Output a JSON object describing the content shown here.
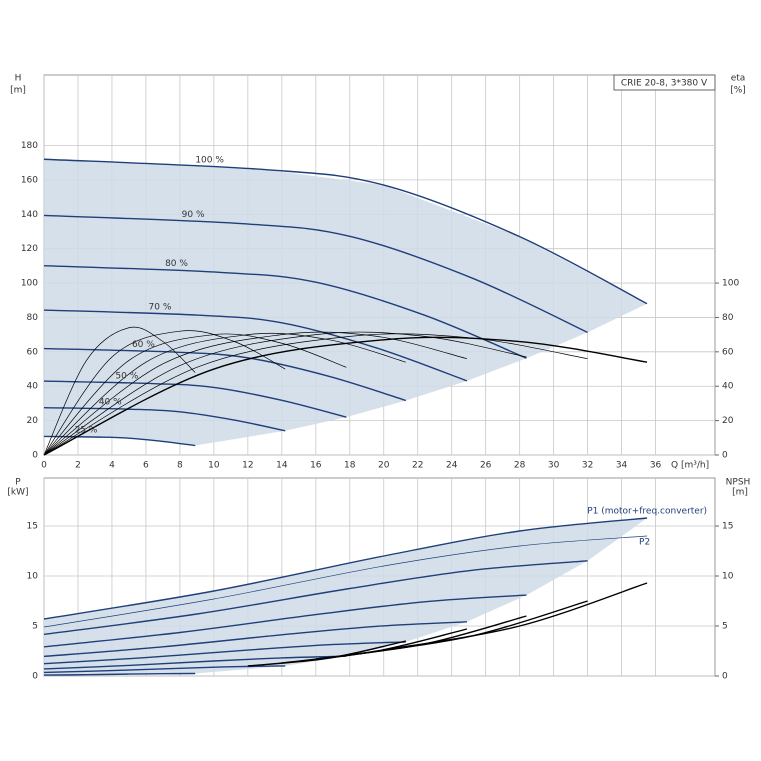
{
  "chart_data": [
    {
      "type": "line",
      "title": "CRIE 20-8, 3*380 V",
      "x_label": "Q [m³/h]",
      "y_label": "H",
      "y_unit": "[m]",
      "y2_label": "eta",
      "y2_unit": "[%]",
      "xlim": [
        0,
        39.5
      ],
      "xticks": [
        0,
        2,
        4,
        6,
        8,
        10,
        12,
        14,
        16,
        18,
        20,
        22,
        24,
        26,
        28,
        30,
        32,
        34,
        36
      ],
      "ylim": [
        0,
        221
      ],
      "yticks": [
        0,
        20,
        40,
        60,
        80,
        100,
        120,
        140,
        160,
        180
      ],
      "y2lim": [
        0,
        221
      ],
      "y2ticks": [
        0,
        20,
        40,
        60,
        80,
        100
      ],
      "grid": true,
      "shade": "#cfdbe7",
      "series": [
        {
          "name": "100 %",
          "color": "#1f3f7a",
          "style": "bold",
          "x": [
            0,
            13,
            20,
            28,
            35.5
          ],
          "values": [
            172,
            166,
            157,
            127,
            88
          ]
        },
        {
          "name": "90 %",
          "color": "#1f3f7a",
          "style": "bold",
          "x": [
            0,
            11.7,
            18,
            25.2,
            32
          ],
          "values": [
            139.3,
            134.5,
            127.2,
            102.9,
            71.3
          ]
        },
        {
          "name": "80 %",
          "color": "#1f3f7a",
          "style": "bold",
          "x": [
            0,
            10.4,
            16,
            22.4,
            28.4
          ],
          "values": [
            110.1,
            106.2,
            100.5,
            81.3,
            56.3
          ]
        },
        {
          "name": "70 %",
          "color": "#1f3f7a",
          "style": "bold",
          "x": [
            0,
            9.1,
            14,
            19.6,
            24.9
          ],
          "values": [
            84.3,
            81.3,
            76.9,
            62.2,
            43.1
          ]
        },
        {
          "name": "60 %",
          "color": "#1f3f7a",
          "style": "bold",
          "x": [
            0,
            7.8,
            12,
            16.8,
            21.3
          ],
          "values": [
            61.9,
            59.8,
            56.5,
            45.7,
            31.7
          ]
        },
        {
          "name": "50 %",
          "color": "#1f3f7a",
          "style": "bold",
          "x": [
            0,
            6.5,
            10,
            14,
            17.8
          ],
          "values": [
            43,
            41.5,
            39.3,
            31.8,
            22
          ]
        },
        {
          "name": "40 %",
          "color": "#1f3f7a",
          "style": "bold",
          "x": [
            0,
            5.2,
            8,
            11.2,
            14.2
          ],
          "values": [
            27.5,
            26.6,
            25.1,
            20.3,
            14.1
          ]
        },
        {
          "name": "25 %",
          "color": "#1f3f7a",
          "style": "bold",
          "x": [
            0,
            3.3,
            5,
            7,
            8.9
          ],
          "values": [
            10.8,
            10.4,
            9.8,
            7.9,
            5.5
          ]
        },
        {
          "color": "#000000",
          "style": "bold",
          "axis": "y2",
          "x": [
            0,
            10,
            20,
            28,
            35.5
          ],
          "values": [
            0,
            50,
            67,
            66,
            54
          ]
        },
        {
          "color": "#000000",
          "style": "thin",
          "axis": "y2",
          "x": [
            0,
            9,
            18,
            25.2,
            32
          ],
          "values": [
            0,
            51,
            69,
            68,
            56
          ]
        },
        {
          "color": "#000000",
          "style": "thin",
          "axis": "y2",
          "x": [
            0,
            8,
            16,
            22.4,
            28.4
          ],
          "values": [
            0,
            52,
            70,
            69,
            57
          ]
        },
        {
          "color": "#000000",
          "style": "thin",
          "axis": "y2",
          "x": [
            0,
            7,
            14,
            19.6,
            24.9
          ],
          "values": [
            0,
            53,
            70,
            69,
            56
          ]
        },
        {
          "color": "#000000",
          "style": "thin",
          "axis": "y2",
          "x": [
            0,
            6,
            12,
            16.8,
            21.3
          ],
          "values": [
            0,
            54,
            70,
            67,
            54
          ]
        },
        {
          "color": "#000000",
          "style": "thin",
          "axis": "y2",
          "x": [
            0,
            5,
            10,
            14,
            17.8
          ],
          "values": [
            0,
            55,
            70,
            65,
            51
          ]
        },
        {
          "color": "#000000",
          "style": "thin",
          "axis": "y2",
          "x": [
            0,
            4,
            8,
            11.2,
            14.2
          ],
          "values": [
            0,
            57,
            72,
            66,
            50
          ]
        },
        {
          "color": "#000000",
          "style": "thin",
          "axis": "y2",
          "x": [
            0,
            2.5,
            5,
            7,
            8.9
          ],
          "values": [
            0,
            55,
            74,
            66,
            48
          ]
        }
      ]
    },
    {
      "type": "line",
      "y_label": "P",
      "y_unit": "[kW]",
      "y2_label": "NPSH",
      "y2_unit": "[m]",
      "xlim": [
        0,
        39.5
      ],
      "ylim": [
        0,
        19.8
      ],
      "yticks": [
        0,
        5,
        10,
        15
      ],
      "y2lim": [
        0,
        19.8
      ],
      "y2ticks": [
        0,
        5,
        10,
        15
      ],
      "grid": true,
      "shade": "#cfdbe7",
      "series": [
        {
          "name": "P1 (motor+freq.converter)",
          "color": "#1f3f7a",
          "style": "bold",
          "x": [
            0,
            10,
            20,
            28,
            35.5
          ],
          "values": [
            5.7,
            8.5,
            12,
            14.5,
            15.8
          ]
        },
        {
          "color": "#1f3f7a",
          "style": "bold",
          "x": [
            0,
            9,
            18,
            25.2,
            32
          ],
          "values": [
            4.16,
            6.2,
            8.75,
            10.57,
            11.52
          ]
        },
        {
          "color": "#1f3f7a",
          "style": "bold",
          "x": [
            0,
            8,
            16,
            22.4,
            28.4
          ],
          "values": [
            2.92,
            4.35,
            6.14,
            7.42,
            8.09
          ]
        },
        {
          "color": "#1f3f7a",
          "style": "bold",
          "x": [
            0,
            7,
            14,
            19.6,
            24.9
          ],
          "values": [
            1.96,
            2.92,
            4.12,
            4.97,
            5.42
          ]
        },
        {
          "color": "#1f3f7a",
          "style": "bold",
          "x": [
            0,
            6,
            12,
            16.8,
            21.3
          ],
          "values": [
            1.23,
            1.84,
            2.59,
            3.13,
            3.41
          ]
        },
        {
          "color": "#1f3f7a",
          "style": "bold",
          "x": [
            0,
            5,
            10,
            14,
            17.8
          ],
          "values": [
            0.71,
            1.06,
            1.5,
            1.81,
            1.98
          ]
        },
        {
          "color": "#1f3f7a",
          "style": "bold",
          "x": [
            0,
            4,
            8,
            11.2,
            14.2
          ],
          "values": [
            0.36,
            0.54,
            0.77,
            0.93,
            1.01
          ]
        },
        {
          "color": "#1f3f7a",
          "style": "bold",
          "x": [
            0,
            2.5,
            5,
            7,
            8.9
          ],
          "values": [
            0.09,
            0.13,
            0.19,
            0.23,
            0.25
          ]
        },
        {
          "name": "P2",
          "color": "#1f3f7a",
          "style": "thin",
          "x": [
            0,
            10,
            20,
            28,
            35.5
          ],
          "values": [
            4.9,
            7.7,
            11,
            13,
            14
          ]
        },
        {
          "color": "#000000",
          "style": "bold",
          "axis": "y2",
          "x": [
            20,
            28,
            35.5
          ],
          "values": [
            2.6,
            5,
            9.3
          ]
        },
        {
          "color": "#000000",
          "style": "bold",
          "axis": "y2",
          "x": [
            18,
            25.2,
            32
          ],
          "values": [
            2.1,
            4,
            7.5
          ]
        },
        {
          "color": "#000000",
          "style": "bold",
          "axis": "y2",
          "x": [
            16,
            22.4,
            28.4
          ],
          "values": [
            1.7,
            3.2,
            6
          ]
        },
        {
          "color": "#000000",
          "style": "bold",
          "axis": "y2",
          "x": [
            14,
            19.6,
            24.9
          ],
          "values": [
            1.3,
            2.5,
            4.7
          ]
        },
        {
          "color": "#000000",
          "style": "bold",
          "axis": "y2",
          "x": [
            12,
            16.8,
            21.3
          ],
          "values": [
            1,
            1.8,
            3.5
          ]
        }
      ]
    }
  ]
}
